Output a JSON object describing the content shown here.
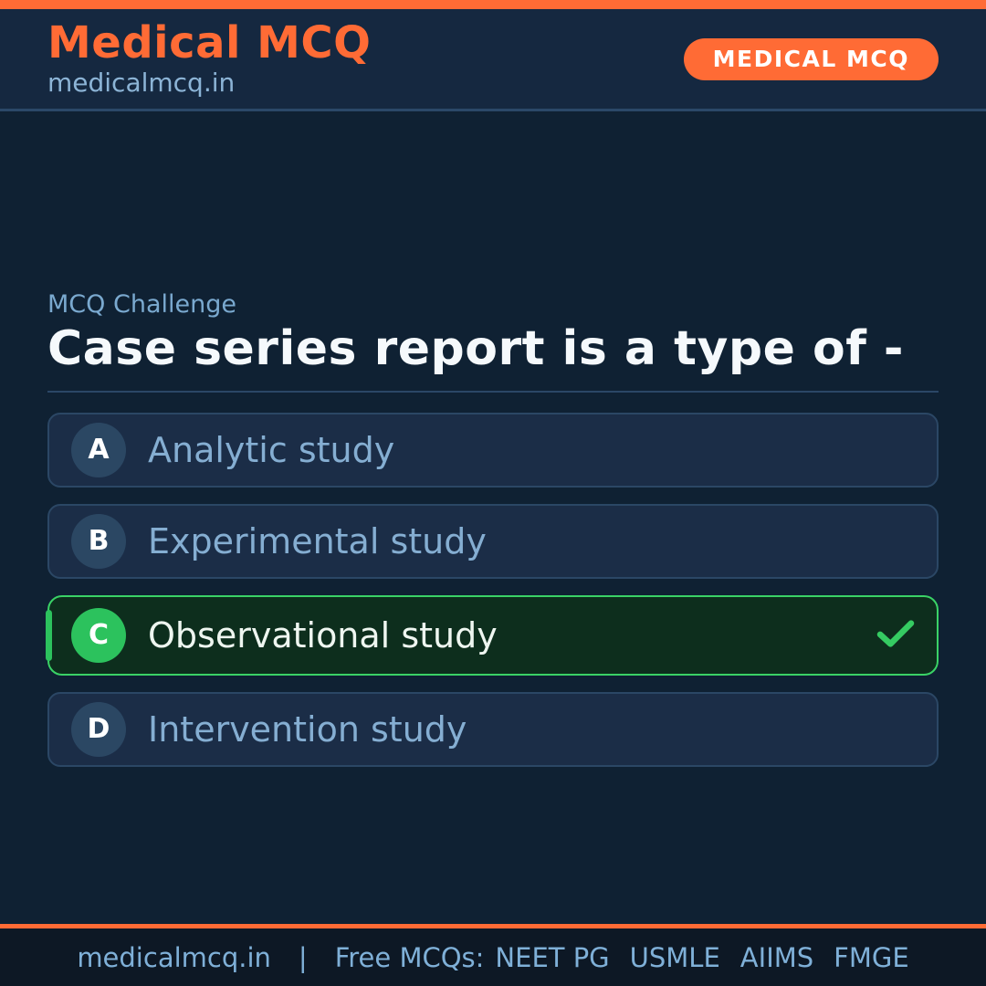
{
  "header": {
    "brand_title": "Medical MCQ",
    "brand_subtitle": "medicalmcq.in",
    "badge_label": "MEDICAL MCQ"
  },
  "question": {
    "eyebrow": "MCQ Challenge",
    "title": "Case series report is a type of -"
  },
  "options": [
    {
      "letter": "A",
      "label": "Analytic study",
      "correct": false
    },
    {
      "letter": "B",
      "label": "Experimental study",
      "correct": false
    },
    {
      "letter": "C",
      "label": "Observational study",
      "correct": true
    },
    {
      "letter": "D",
      "label": "Intervention study",
      "correct": false
    }
  ],
  "icons": {
    "correct_option": "check-icon"
  },
  "footer": {
    "site": "medicalmcq.in",
    "separator": "|",
    "tagline": "Free MCQs:",
    "exams": [
      "NEET PG",
      "USMLE",
      "AIIMS",
      "FMGE"
    ]
  },
  "colors": {
    "accent_orange": "#ff6b35",
    "correct_green": "#2cc25d",
    "correct_border_green": "#3ad266",
    "correct_bg_green": "#0d2e1d",
    "body_bg": "#0f2133",
    "header_bg": "#152840",
    "footer_bg": "#0d1825",
    "card_bg": "#1b2d47",
    "card_border": "#2b4765",
    "light_blue_text": "#85aed2"
  }
}
